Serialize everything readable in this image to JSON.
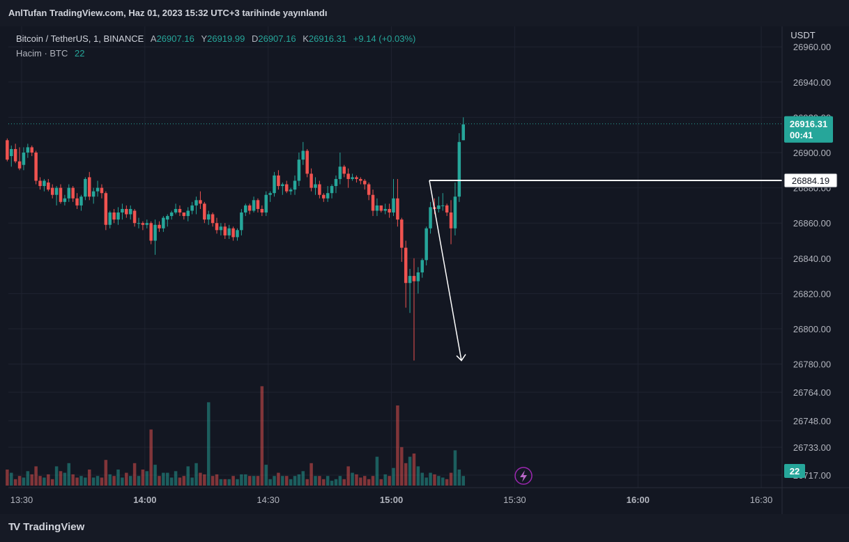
{
  "header": {
    "publisher_line": "AnlTufan TradingView.com, Haz 01, 2023 15:32 UTC+3 tarihinde yayınlandı"
  },
  "legend": {
    "symbol": "Bitcoin / TetherUS, 1, BINANCE",
    "open_label": "A",
    "open": "26907.16",
    "high_label": "Y",
    "high": "26919.99",
    "low_label": "D",
    "low": "26907.16",
    "close_label": "K",
    "close": "26916.31",
    "change": "+9.14 (+0.03%)",
    "volume_label": "Hacim · BTC",
    "volume_value": "22"
  },
  "footer": {
    "logo_mark": "TV",
    "logo_text": "TradingView"
  },
  "colors": {
    "background": "#131722",
    "up": "#26a69a",
    "down": "#ef5350",
    "vol_up": "#26a69a",
    "vol_down": "#ef5350",
    "grid": "#1f2330",
    "axis_text": "#b2b5be",
    "drawing": "#ffffff"
  },
  "chart_data": {
    "type": "candlestick",
    "quote_currency": "USDT",
    "x_ticks": [
      "13:30",
      "14:00",
      "14:30",
      "15:00",
      "15:30",
      "16:00",
      "16:30"
    ],
    "price_axis": {
      "ticks": [
        "26960.00",
        "26940.00",
        "26920.00",
        "26900.00",
        "26880.00",
        "26860.00",
        "26840.00",
        "26820.00",
        "26800.00",
        "26780.00"
      ]
    },
    "volume_axis": {
      "ticks": [
        "26764.00",
        "26748.00",
        "26733.00",
        "26717.00"
      ]
    },
    "current_price": {
      "value": 26916.31,
      "label": "26916.31",
      "countdown": "00:41"
    },
    "horizontal_line": {
      "value": 26884.19,
      "label": "26884.19"
    },
    "arrow": {
      "from_time": "15:09",
      "from_price": 26884.19,
      "to_time": "15:17",
      "to_price": 26782
    },
    "volume_last": "22",
    "candles": [
      [
        26907,
        26908,
        26895,
        26896,
        10
      ],
      [
        26898,
        26904,
        26892,
        26902,
        8
      ],
      [
        26902,
        26905,
        26894,
        26895,
        4
      ],
      [
        26895,
        26903,
        26890,
        26891,
        6
      ],
      [
        26893,
        26903,
        26890,
        26900,
        5
      ],
      [
        26900,
        26905,
        26897,
        26903,
        9
      ],
      [
        26903,
        26904,
        26898,
        26900,
        7
      ],
      [
        26900,
        26901,
        26882,
        26884,
        12
      ],
      [
        26884,
        26886,
        26879,
        26881,
        6
      ],
      [
        26881,
        26885,
        26878,
        26884,
        5
      ],
      [
        26883,
        26885,
        26878,
        26879,
        7
      ],
      [
        26880,
        26882,
        26874,
        26876,
        4
      ],
      [
        26876,
        26881,
        26870,
        26880,
        12
      ],
      [
        26880,
        26882,
        26871,
        26872,
        9
      ],
      [
        26872,
        26876,
        26870,
        26874,
        8
      ],
      [
        26874,
        26882,
        26872,
        26880,
        14
      ],
      [
        26880,
        26881,
        26872,
        26874,
        7
      ],
      [
        26874,
        26877,
        26868,
        26870,
        5
      ],
      [
        26870,
        26876,
        26867,
        26875,
        6
      ],
      [
        26875,
        26886,
        26873,
        26885,
        5
      ],
      [
        26886,
        26889,
        26873,
        26875,
        10
      ],
      [
        26875,
        26880,
        26871,
        26878,
        5
      ],
      [
        26878,
        26884,
        26875,
        26880,
        6
      ],
      [
        26880,
        26882,
        26874,
        26877,
        5
      ],
      [
        26877,
        26878,
        26856,
        26859,
        16
      ],
      [
        26859,
        26867,
        26857,
        26866,
        7
      ],
      [
        26866,
        26868,
        26860,
        26862,
        6
      ],
      [
        26862,
        26869,
        26859,
        26866,
        10
      ],
      [
        26866,
        26871,
        26862,
        26868,
        5
      ],
      [
        26868,
        26870,
        26863,
        26865,
        8
      ],
      [
        26865,
        26870,
        26862,
        26868,
        6
      ],
      [
        26867,
        26868,
        26858,
        26860,
        14
      ],
      [
        26860,
        26863,
        26857,
        26860,
        6
      ],
      [
        26860,
        26861,
        26856,
        26859,
        10
      ],
      [
        26859,
        26862,
        26857,
        26860,
        9
      ],
      [
        26860,
        26861,
        26848,
        26850,
        35
      ],
      [
        26850,
        26862,
        26842,
        26859,
        13
      ],
      [
        26859,
        26861,
        26855,
        26857,
        6
      ],
      [
        26857,
        26864,
        26855,
        26863,
        8
      ],
      [
        26862,
        26865,
        26858,
        26864,
        8
      ],
      [
        26864,
        26867,
        26862,
        26866,
        5
      ],
      [
        26866,
        26871,
        26865,
        26868,
        9
      ],
      [
        26868,
        26870,
        26864,
        26866,
        5
      ],
      [
        26866,
        26866,
        26862,
        26864,
        6
      ],
      [
        26864,
        26869,
        26861,
        26867,
        12
      ],
      [
        26867,
        26872,
        26865,
        26870,
        5
      ],
      [
        26870,
        26875,
        26865,
        26873,
        14
      ],
      [
        26873,
        26878,
        26868,
        26871,
        8
      ],
      [
        26871,
        26872,
        26860,
        26862,
        7
      ],
      [
        26862,
        26867,
        26859,
        26865,
        52
      ],
      [
        26865,
        26866,
        26858,
        26860,
        6
      ],
      [
        26860,
        26863,
        26854,
        26856,
        7
      ],
      [
        26856,
        26860,
        26853,
        26858,
        4
      ],
      [
        26858,
        26860,
        26851,
        26853,
        4
      ],
      [
        26853,
        26859,
        26851,
        26857,
        4
      ],
      [
        26857,
        26858,
        26850,
        26852,
        6
      ],
      [
        26852,
        26857,
        26850,
        26856,
        4
      ],
      [
        26856,
        26868,
        26853,
        26866,
        7
      ],
      [
        26866,
        26871,
        26864,
        26870,
        7
      ],
      [
        26870,
        26871,
        26865,
        26867,
        6
      ],
      [
        26867,
        26875,
        26866,
        26873,
        6
      ],
      [
        26873,
        26874,
        26866,
        26868,
        6
      ],
      [
        26868,
        26870,
        26864,
        26866,
        62
      ],
      [
        26866,
        26878,
        26864,
        26876,
        13
      ],
      [
        26876,
        26878,
        26872,
        26877,
        4
      ],
      [
        26877,
        26889,
        26875,
        26887,
        6
      ],
      [
        26887,
        26890,
        26879,
        26881,
        8
      ],
      [
        26881,
        26883,
        26876,
        26882,
        6
      ],
      [
        26882,
        26884,
        26877,
        26878,
        6
      ],
      [
        26878,
        26880,
        26876,
        26879,
        4
      ],
      [
        26879,
        26887,
        26876,
        26884,
        6
      ],
      [
        26884,
        26900,
        26881,
        26896,
        7
      ],
      [
        26896,
        26906,
        26893,
        26901,
        9
      ],
      [
        26901,
        26902,
        26886,
        26888,
        4
      ],
      [
        26888,
        26891,
        26878,
        26880,
        14
      ],
      [
        26880,
        26886,
        26876,
        26882,
        6
      ],
      [
        26882,
        26884,
        26874,
        26876,
        6
      ],
      [
        26876,
        26877,
        26872,
        26874,
        4
      ],
      [
        26874,
        26881,
        26872,
        26877,
        6
      ],
      [
        26877,
        26882,
        26874,
        26881,
        3
      ],
      [
        26881,
        26887,
        26877,
        26885,
        4
      ],
      [
        26885,
        26900,
        26882,
        26892,
        6
      ],
      [
        26892,
        26893,
        26886,
        26888,
        4
      ],
      [
        26888,
        26891,
        26880,
        26885,
        12
      ],
      [
        26885,
        26888,
        26884,
        26886,
        8
      ],
      [
        26886,
        26887,
        26883,
        26885,
        7
      ],
      [
        26885,
        26886,
        26882,
        26884,
        5
      ],
      [
        26884,
        26885,
        26879,
        26882,
        6
      ],
      [
        26882,
        26883,
        26873,
        26876,
        4
      ],
      [
        26876,
        26879,
        26864,
        26867,
        6
      ],
      [
        26867,
        26874,
        26864,
        26870,
        18
      ],
      [
        26870,
        26870,
        26866,
        26867,
        4
      ],
      [
        26867,
        26871,
        26865,
        26868,
        7
      ],
      [
        26868,
        26871,
        26863,
        26866,
        6
      ],
      [
        26866,
        26885,
        26864,
        26874,
        11
      ],
      [
        26874,
        26885,
        26858,
        26862,
        50
      ],
      [
        26862,
        26863,
        26838,
        26846,
        24
      ],
      [
        26846,
        26850,
        26812,
        26826,
        14
      ],
      [
        26826,
        26834,
        26809,
        26830,
        18
      ],
      [
        26830,
        26840,
        26782,
        26827,
        20
      ],
      [
        26827,
        26835,
        26820,
        26832,
        12
      ],
      [
        26832,
        26840,
        26829,
        26839,
        8
      ],
      [
        26839,
        26858,
        26836,
        26857,
        5
      ],
      [
        26857,
        26872,
        26854,
        26869,
        8
      ],
      [
        26869,
        26874,
        26865,
        26868,
        7
      ],
      [
        26868,
        26875,
        26866,
        26870,
        6
      ],
      [
        26870,
        26877,
        26867,
        26870,
        5
      ],
      [
        26870,
        26871,
        26864,
        26866,
        4
      ],
      [
        26866,
        26873,
        26848,
        26857,
        8
      ],
      [
        26857,
        26883,
        26853,
        26875,
        22
      ],
      [
        26875,
        26911,
        26872,
        26906,
        10
      ],
      [
        26907,
        26920,
        26907,
        26916,
        6
      ]
    ]
  }
}
